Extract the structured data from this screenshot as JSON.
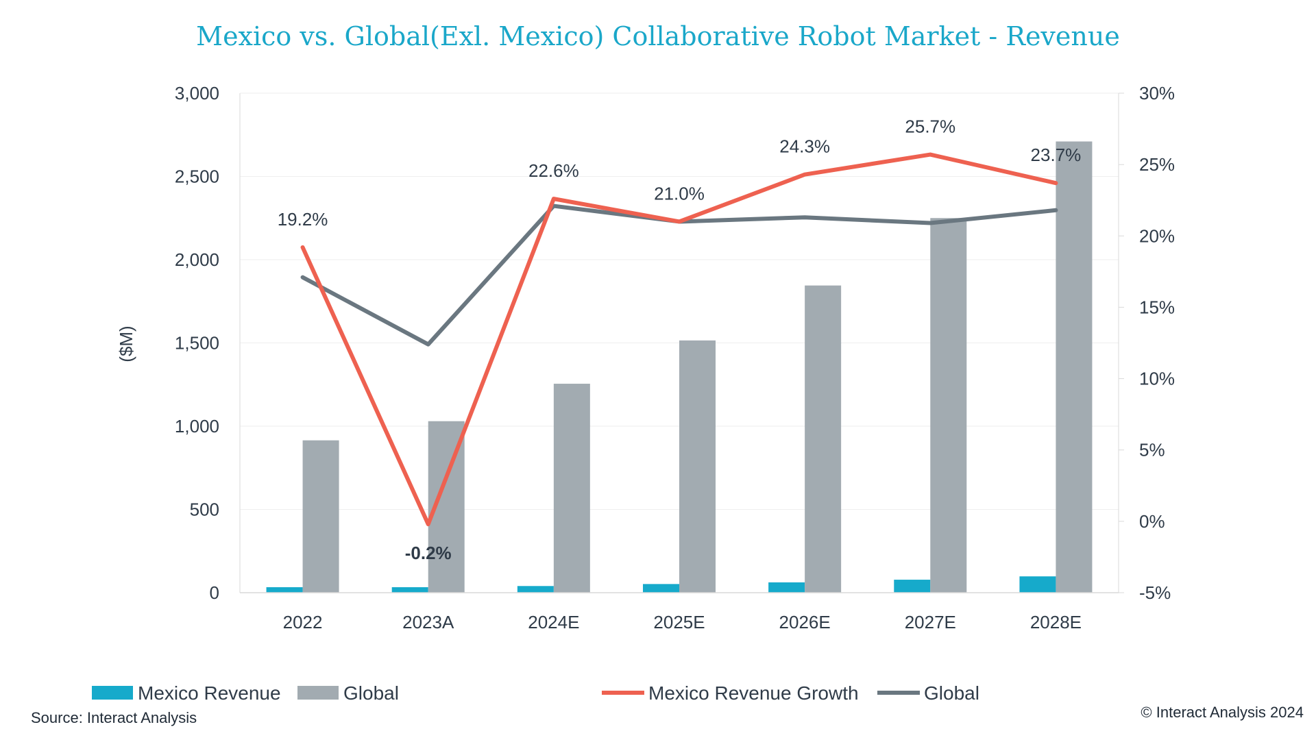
{
  "chart_data": {
    "type": "bar",
    "title": "Mexico vs. Global(Exl. Mexico) Collaborative Robot Market - Revenue",
    "ylabel": "($M)",
    "ylim": [
      0,
      3000
    ],
    "y_ticks": [
      "0",
      "500",
      "1,000",
      "1,500",
      "2,000",
      "2,500",
      "3,000"
    ],
    "y2lim": [
      -5,
      30
    ],
    "y2_ticks": [
      "-5%",
      "0%",
      "5%",
      "10%",
      "15%",
      "20%",
      "25%",
      "30%"
    ],
    "categories": [
      "2022",
      "2023A",
      "2024E",
      "2025E",
      "2026E",
      "2027E",
      "2028E"
    ],
    "series": [
      {
        "name": "Mexico Revenue",
        "kind": "bar",
        "axis": "left",
        "color": "#16aacb",
        "values": [
          33,
          33,
          40,
          52,
          62,
          78,
          98
        ]
      },
      {
        "name": "Global",
        "kind": "bar",
        "axis": "left",
        "color": "#a2abb1",
        "values": [
          915,
          1030,
          1255,
          1515,
          1845,
          2250,
          2710
        ]
      },
      {
        "name": "Mexico Revenue Growth",
        "kind": "line",
        "axis": "right",
        "color": "#ee6150",
        "values": [
          19.2,
          -0.2,
          22.6,
          21.0,
          24.3,
          25.7,
          23.7
        ],
        "labels": [
          "19.2%",
          "-0.2%",
          "22.6%",
          "21.0%",
          "24.3%",
          "25.7%",
          "23.7%"
        ]
      },
      {
        "name": "Global",
        "kind": "line",
        "axis": "right",
        "color": "#6a7780",
        "values": [
          17.1,
          12.4,
          22.1,
          21.0,
          21.3,
          20.9,
          21.8
        ]
      }
    ],
    "grid": true,
    "legend_position": "bottom"
  },
  "source": "Source: Interact Analysis",
  "copyright": "© Interact Analysis 2024"
}
